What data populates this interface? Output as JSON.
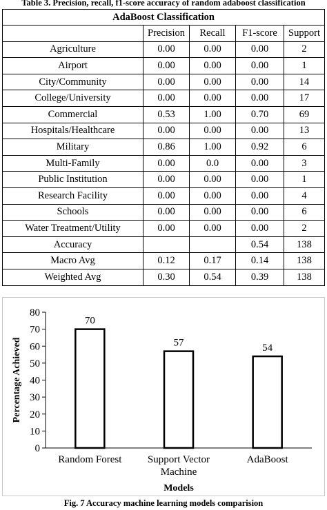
{
  "table": {
    "caption": "Table 3. Precision, recall, f1-score accuracy of random adaboost classification",
    "title": "AdaBoost Classification",
    "headers": [
      "",
      "Precision",
      "Recall",
      "F1-score",
      "Support"
    ],
    "rows": [
      [
        "Agriculture",
        "0.00",
        "0.00",
        "0.00",
        "2"
      ],
      [
        "Airport",
        "0.00",
        "0.00",
        "0.00",
        "1"
      ],
      [
        "City/Community",
        "0.00",
        "0.00",
        "0.00",
        "14"
      ],
      [
        "College/University",
        "0.00",
        "0.00",
        "0.00",
        "17"
      ],
      [
        "Commercial",
        "0.53",
        "1.00",
        "0.70",
        "69"
      ],
      [
        "Hospitals/Healthcare",
        "0.00",
        "0.00",
        "0.00",
        "13"
      ],
      [
        "Military",
        "0.86",
        "1.00",
        "0.92",
        "6"
      ],
      [
        "Multi-Family",
        "0.00",
        "0.0",
        "0.00",
        "3"
      ],
      [
        "Public Institution",
        "0.00",
        "0.00",
        "0.00",
        "1"
      ],
      [
        "Research Facility",
        "0.00",
        "0.00",
        "0.00",
        "4"
      ],
      [
        "Schools",
        "0.00",
        "0.00",
        "0.00",
        "6"
      ],
      [
        "Water Treatment/Utility",
        "0.00",
        "0.00",
        "0.00",
        "2"
      ],
      [
        "Accuracy",
        "",
        "",
        "0.54",
        "138"
      ],
      [
        "Macro Avg",
        "0.12",
        "0.17",
        "0.14",
        "138"
      ],
      [
        "Weighted Avg",
        "0.30",
        "0.54",
        "0.39",
        "138"
      ]
    ]
  },
  "chart_data": {
    "type": "bar",
    "categories": [
      [
        "Random Forest"
      ],
      [
        "Support Vector",
        "Machine"
      ],
      [
        "AdaBoost"
      ]
    ],
    "values": [
      70,
      57,
      54
    ],
    "data_labels": [
      "70",
      "57",
      "54"
    ],
    "xlabel": "Models",
    "ylabel": "Percentage Achieved",
    "ylim": [
      0,
      80
    ],
    "yticks": [
      "0",
      "10",
      "20",
      "30",
      "40",
      "50",
      "60",
      "70",
      "80"
    ],
    "grid": false,
    "bar_fill": "#ffffff",
    "bar_stroke": "#000000"
  },
  "figure": {
    "caption": "Fig. 7 Accuracy machine learning models comparision"
  }
}
